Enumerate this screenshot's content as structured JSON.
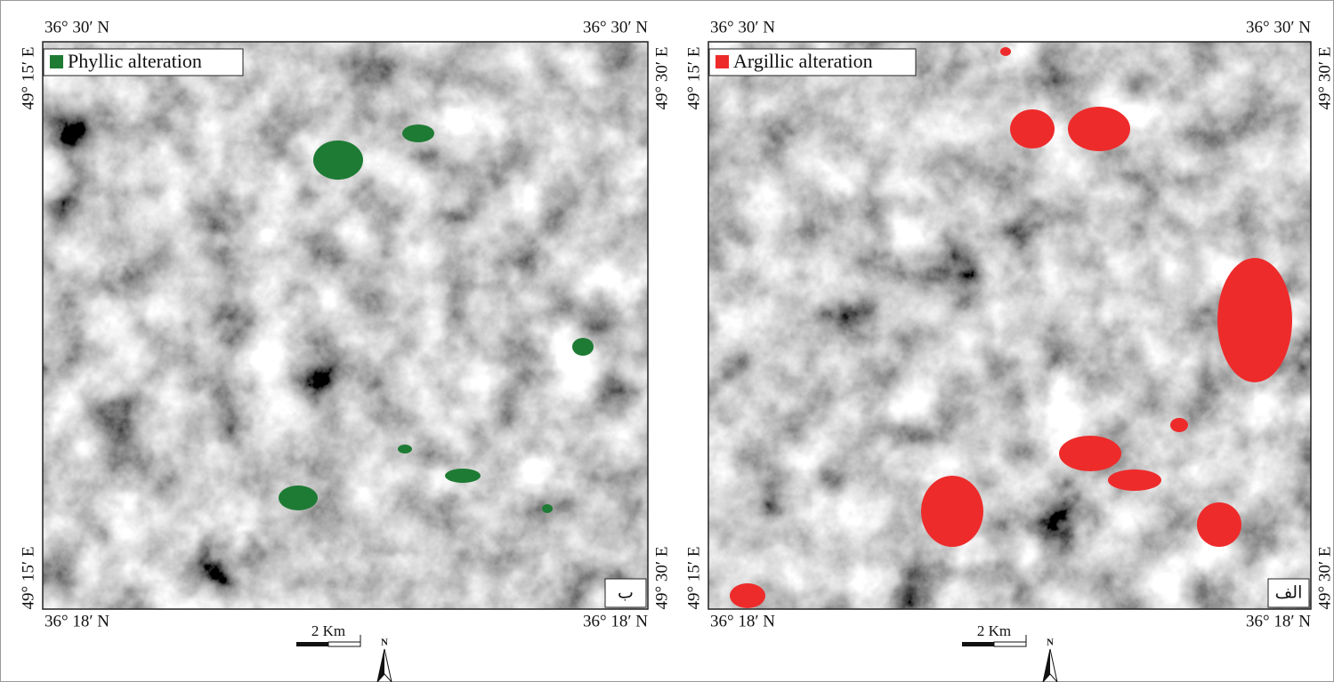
{
  "panels": [
    {
      "label": "ب",
      "legend": "Phyllic alteration",
      "top_left": "36° 30′ N",
      "top_right": "36° 30′ N",
      "bottom_left": "36° 18′ N",
      "bottom_right": "36° 18′ N",
      "left_top": "49° 15′ E",
      "left_bottom": "49° 15′ E",
      "right_top": "49° 30′ E",
      "right_bottom": "49° 30′ E",
      "scale": "2 Km",
      "north": "N"
    },
    {
      "label": "الف",
      "legend": "Argillic alteration",
      "top_left": "36° 30′ N",
      "top_right": "36° 30′ N",
      "bottom_left": "36° 18′ N",
      "bottom_right": "36° 18′ N",
      "left_top": "49° 15′ E",
      "left_bottom": "49° 15′ E",
      "right_top": "49° 30′ E",
      "right_bottom": "49° 30′ E",
      "scale": "2 Km",
      "north": "N"
    }
  ]
}
